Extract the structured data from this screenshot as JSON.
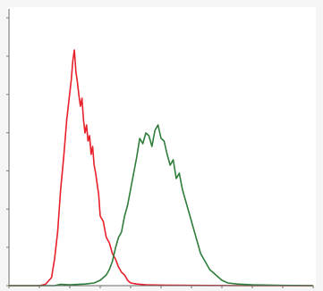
{
  "chart_data": {
    "type": "line",
    "title": "",
    "xlabel": "",
    "ylabel": "",
    "xlim": [
      0,
      100
    ],
    "ylim": [
      0,
      100
    ],
    "grid": false,
    "x_ticks": [
      0,
      10,
      20,
      30,
      40,
      50,
      60,
      70,
      80,
      90,
      100
    ],
    "y_ticks": [
      0,
      14.3,
      28.6,
      42.9,
      57.1,
      71.4,
      85.7,
      100
    ],
    "series": [
      {
        "color": "#e8202a",
        "x": [
          0,
          5,
          10,
          12,
          14,
          15,
          16,
          17,
          18,
          19,
          20,
          20.5,
          21,
          21.5,
          22,
          22.5,
          23,
          23.5,
          24,
          24.5,
          25,
          25.5,
          26,
          26.5,
          27,
          27.5,
          28,
          28.5,
          29,
          29.5,
          30,
          31,
          32,
          33,
          34,
          35,
          36,
          37,
          38,
          39,
          40,
          42,
          45,
          50,
          60,
          80,
          100
        ],
        "y": [
          0,
          0,
          0,
          0.5,
          3,
          10,
          20,
          36,
          48,
          62,
          72,
          77,
          84,
          88,
          80,
          76,
          71,
          67,
          70,
          62,
          57,
          60,
          54,
          56,
          49,
          52,
          45,
          42,
          38,
          34,
          26,
          24,
          18,
          16,
          12,
          10,
          7,
          5,
          4,
          2,
          1,
          0.6,
          0.3,
          0.2,
          0.1,
          0,
          0
        ]
      },
      {
        "color": "#2e7d3a",
        "x": [
          0,
          15,
          17,
          20,
          25,
          28,
          30,
          32,
          33,
          34,
          35,
          36,
          37,
          38,
          39,
          40,
          41,
          42,
          43,
          44,
          45,
          46,
          47,
          48,
          49,
          50,
          51,
          52,
          53,
          54,
          55,
          56,
          57,
          58,
          59,
          60,
          61,
          62,
          63,
          64,
          65,
          66,
          67,
          68,
          69,
          70,
          72,
          75,
          80,
          90,
          100
        ],
        "y": [
          0,
          0,
          0.5,
          0.3,
          0.6,
          1,
          2,
          4,
          6,
          9,
          14,
          18,
          20,
          26,
          30,
          36,
          42,
          48,
          55,
          53,
          57,
          56,
          52,
          58,
          60,
          55,
          54,
          49,
          45,
          47,
          40,
          42,
          36,
          32,
          28,
          24,
          20,
          16,
          12,
          10,
          8,
          6,
          5,
          4,
          3,
          2,
          1,
          0.6,
          0.3,
          0.1,
          0
        ]
      }
    ]
  }
}
